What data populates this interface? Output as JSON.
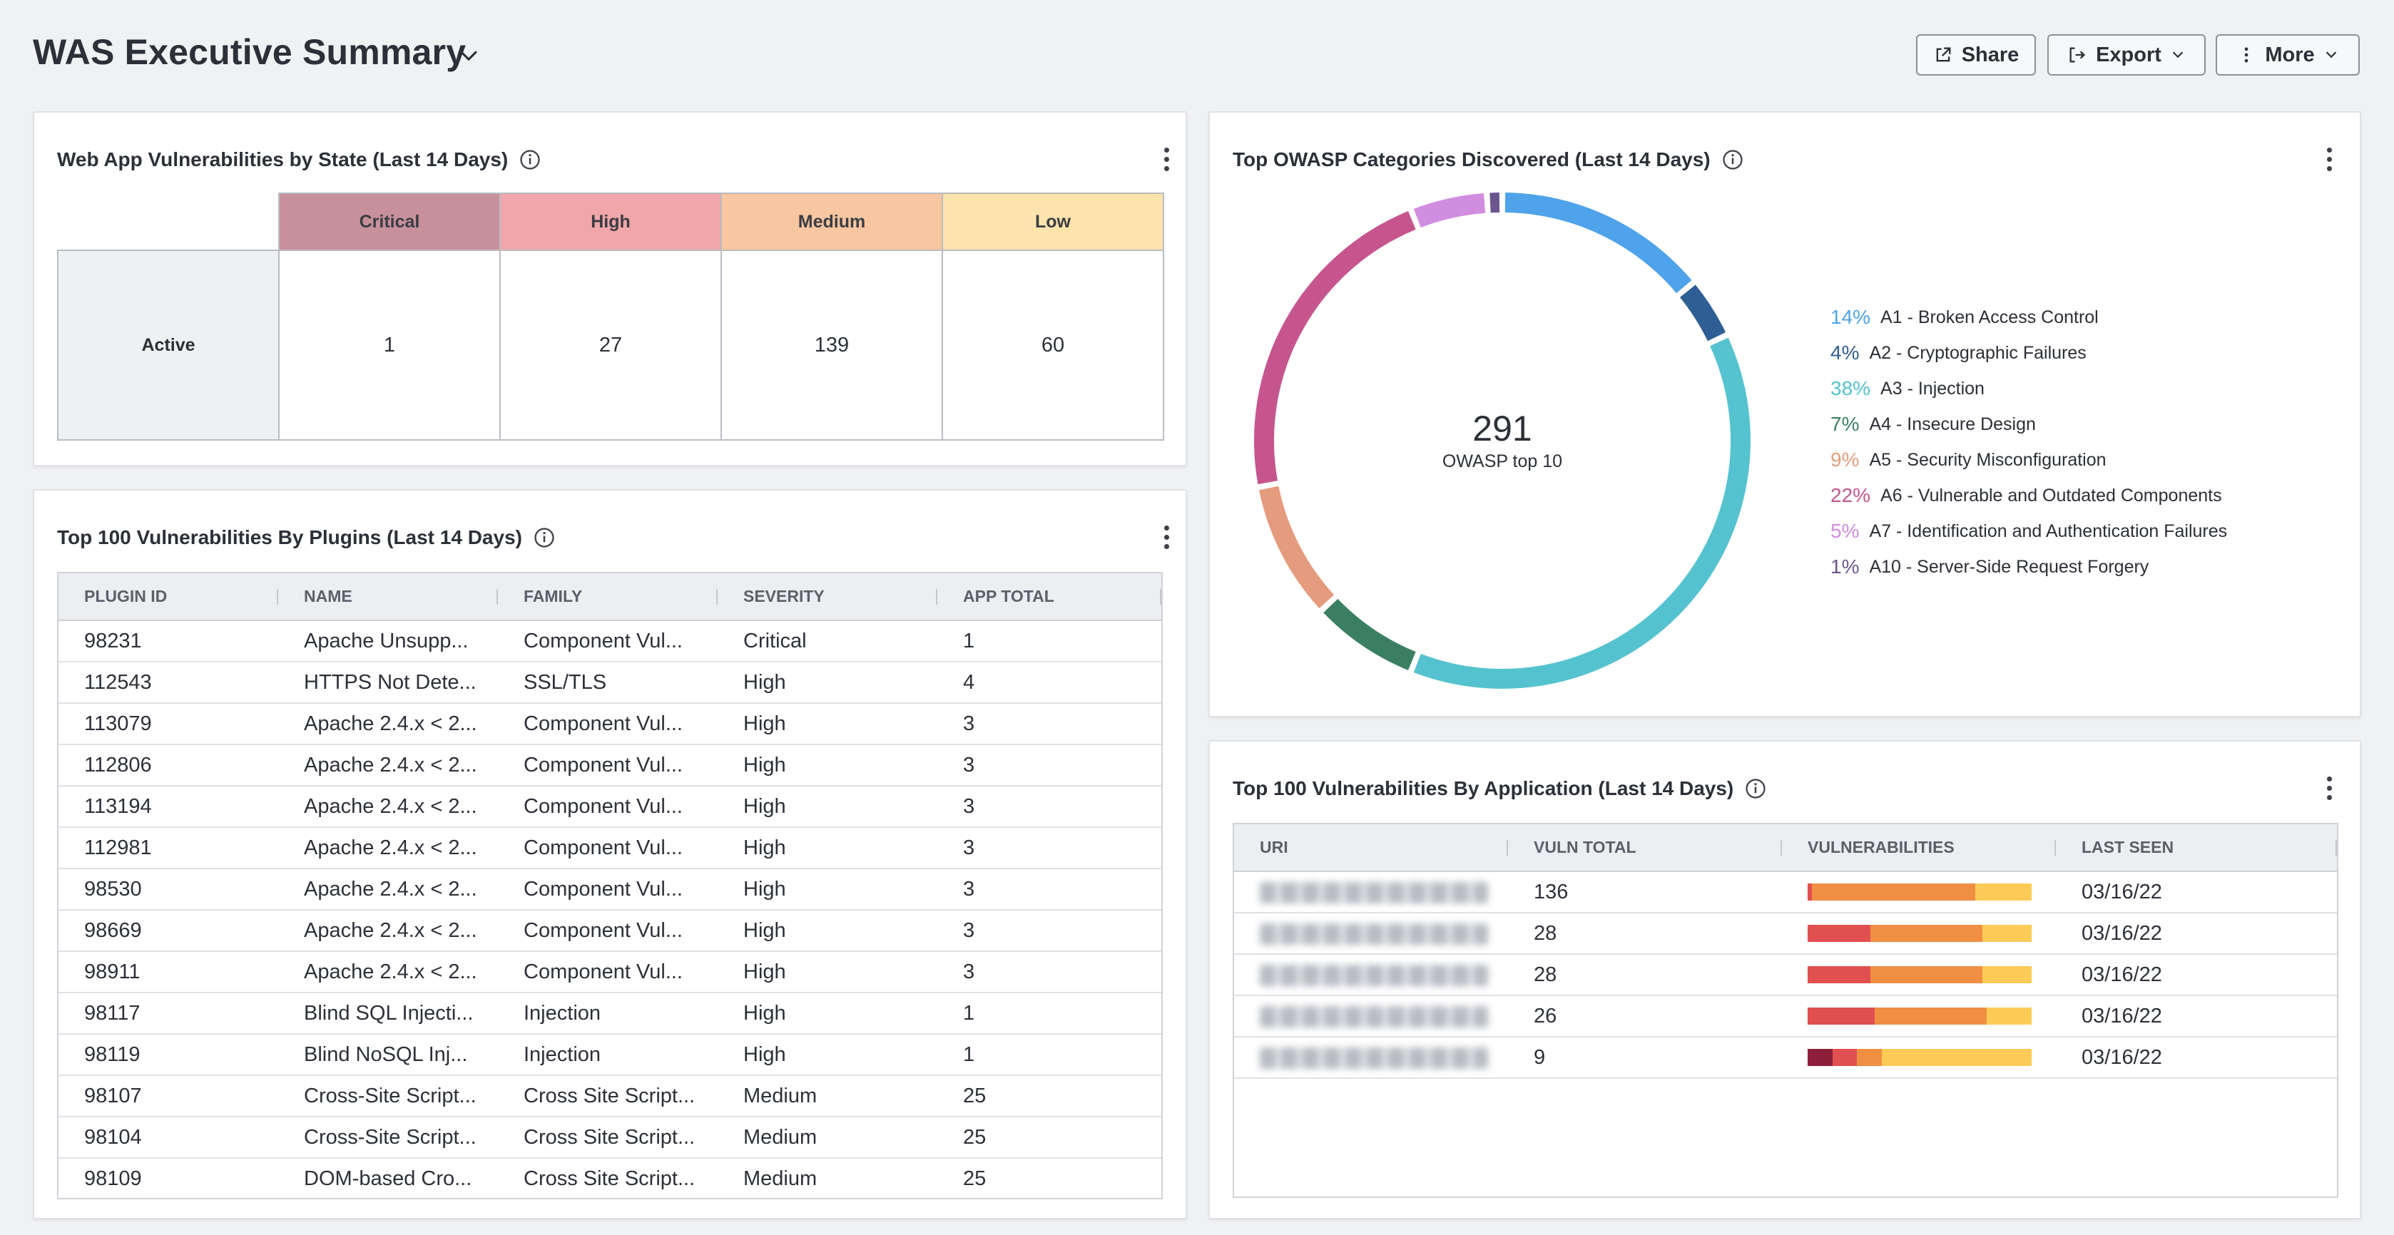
{
  "header": {
    "title": "WAS Executive Summary",
    "buttons": {
      "share": "Share",
      "export": "Export",
      "more": "More"
    }
  },
  "state_card": {
    "title": "Web App Vulnerabilities by State (Last 14 Days)",
    "columns": [
      "Critical",
      "High",
      "Medium",
      "Low"
    ],
    "column_colors": [
      "#c8909b",
      "#f1a6a9",
      "#f8c6a0",
      "#fde3ac"
    ],
    "row_label": "Active",
    "values": [
      "1",
      "27",
      "139",
      "60"
    ]
  },
  "plugins_card": {
    "title": "Top 100 Vulnerabilities By Plugins (Last 14 Days)",
    "headers": [
      "PLUGIN ID",
      "NAME",
      "FAMILY",
      "SEVERITY",
      "APP TOTAL"
    ],
    "rows": [
      {
        "id": "98231",
        "name": "Apache Unsupp...",
        "family": "Component Vul...",
        "severity": "Critical",
        "total": "1"
      },
      {
        "id": "112543",
        "name": "HTTPS Not Dete...",
        "family": "SSL/TLS",
        "severity": "High",
        "total": "4"
      },
      {
        "id": "113079",
        "name": "Apache 2.4.x < 2...",
        "family": "Component Vul...",
        "severity": "High",
        "total": "3"
      },
      {
        "id": "112806",
        "name": "Apache 2.4.x < 2...",
        "family": "Component Vul...",
        "severity": "High",
        "total": "3"
      },
      {
        "id": "113194",
        "name": "Apache 2.4.x < 2...",
        "family": "Component Vul...",
        "severity": "High",
        "total": "3"
      },
      {
        "id": "112981",
        "name": "Apache 2.4.x < 2...",
        "family": "Component Vul...",
        "severity": "High",
        "total": "3"
      },
      {
        "id": "98530",
        "name": "Apache 2.4.x < 2...",
        "family": "Component Vul...",
        "severity": "High",
        "total": "3"
      },
      {
        "id": "98669",
        "name": "Apache 2.4.x < 2...",
        "family": "Component Vul...",
        "severity": "High",
        "total": "3"
      },
      {
        "id": "98911",
        "name": "Apache 2.4.x < 2...",
        "family": "Component Vul...",
        "severity": "High",
        "total": "3"
      },
      {
        "id": "98117",
        "name": "Blind SQL Injecti...",
        "family": "Injection",
        "severity": "High",
        "total": "1"
      },
      {
        "id": "98119",
        "name": "Blind NoSQL Inj...",
        "family": "Injection",
        "severity": "High",
        "total": "1"
      },
      {
        "id": "98107",
        "name": "Cross-Site Script...",
        "family": "Cross Site Script...",
        "severity": "Medium",
        "total": "25"
      },
      {
        "id": "98104",
        "name": "Cross-Site Script...",
        "family": "Cross Site Script...",
        "severity": "Medium",
        "total": "25"
      },
      {
        "id": "98109",
        "name": "DOM-based Cro...",
        "family": "Cross Site Script...",
        "severity": "Medium",
        "total": "25"
      }
    ]
  },
  "owasp_card": {
    "title": "Top OWASP Categories Discovered (Last 14 Days)",
    "center_total": "291",
    "center_label": "OWASP top 10"
  },
  "chart_data": {
    "type": "pie",
    "title": "Top OWASP Categories Discovered (Last 14 Days)",
    "total": 291,
    "center_label": "OWASP top 10",
    "legend_position": "right",
    "slices": [
      {
        "pct_label": "14%",
        "label": "A1 - Broken Access Control",
        "value": 14,
        "color": "#4fa3ea"
      },
      {
        "pct_label": "4%",
        "label": "A2 - Cryptographic Failures",
        "value": 4,
        "color": "#2f5e94"
      },
      {
        "pct_label": "38%",
        "label": "A3 - Injection",
        "value": 38,
        "color": "#55c3cf"
      },
      {
        "pct_label": "7%",
        "label": "A4 - Insecure Design",
        "value": 7,
        "color": "#3b7f62"
      },
      {
        "pct_label": "9%",
        "label": "A5 - Security Misconfiguration",
        "value": 9,
        "color": "#e59c7e"
      },
      {
        "pct_label": "22%",
        "label": "A6 - Vulnerable and Outdated Components",
        "value": 22,
        "color": "#c6558e"
      },
      {
        "pct_label": "5%",
        "label": "A7 - Identification and Authentication Failures",
        "value": 5,
        "color": "#d18ddf"
      },
      {
        "pct_label": "1%",
        "label": "A10 - Server-Side Request Forgery",
        "value": 1,
        "color": "#6b558e"
      }
    ]
  },
  "apps_card": {
    "title": "Top 100 Vulnerabilities By Application (Last 14 Days)",
    "headers": [
      "URI",
      "VULN TOTAL",
      "VULNERABILITIES",
      "LAST SEEN"
    ],
    "bar_colors": [
      "#8e1f3b",
      "#e15050",
      "#f08f44",
      "#fdcb56"
    ],
    "rows": [
      {
        "total": "136",
        "last_seen": "03/16/22",
        "breakdown": [
          0,
          2,
          73,
          25
        ]
      },
      {
        "total": "28",
        "last_seen": "03/16/22",
        "breakdown": [
          0,
          28,
          50,
          22
        ]
      },
      {
        "total": "28",
        "last_seen": "03/16/22",
        "breakdown": [
          0,
          28,
          50,
          22
        ]
      },
      {
        "total": "26",
        "last_seen": "03/16/22",
        "breakdown": [
          0,
          30,
          50,
          20
        ]
      },
      {
        "total": "9",
        "last_seen": "03/16/22",
        "breakdown": [
          11,
          11,
          11,
          67
        ]
      }
    ]
  }
}
